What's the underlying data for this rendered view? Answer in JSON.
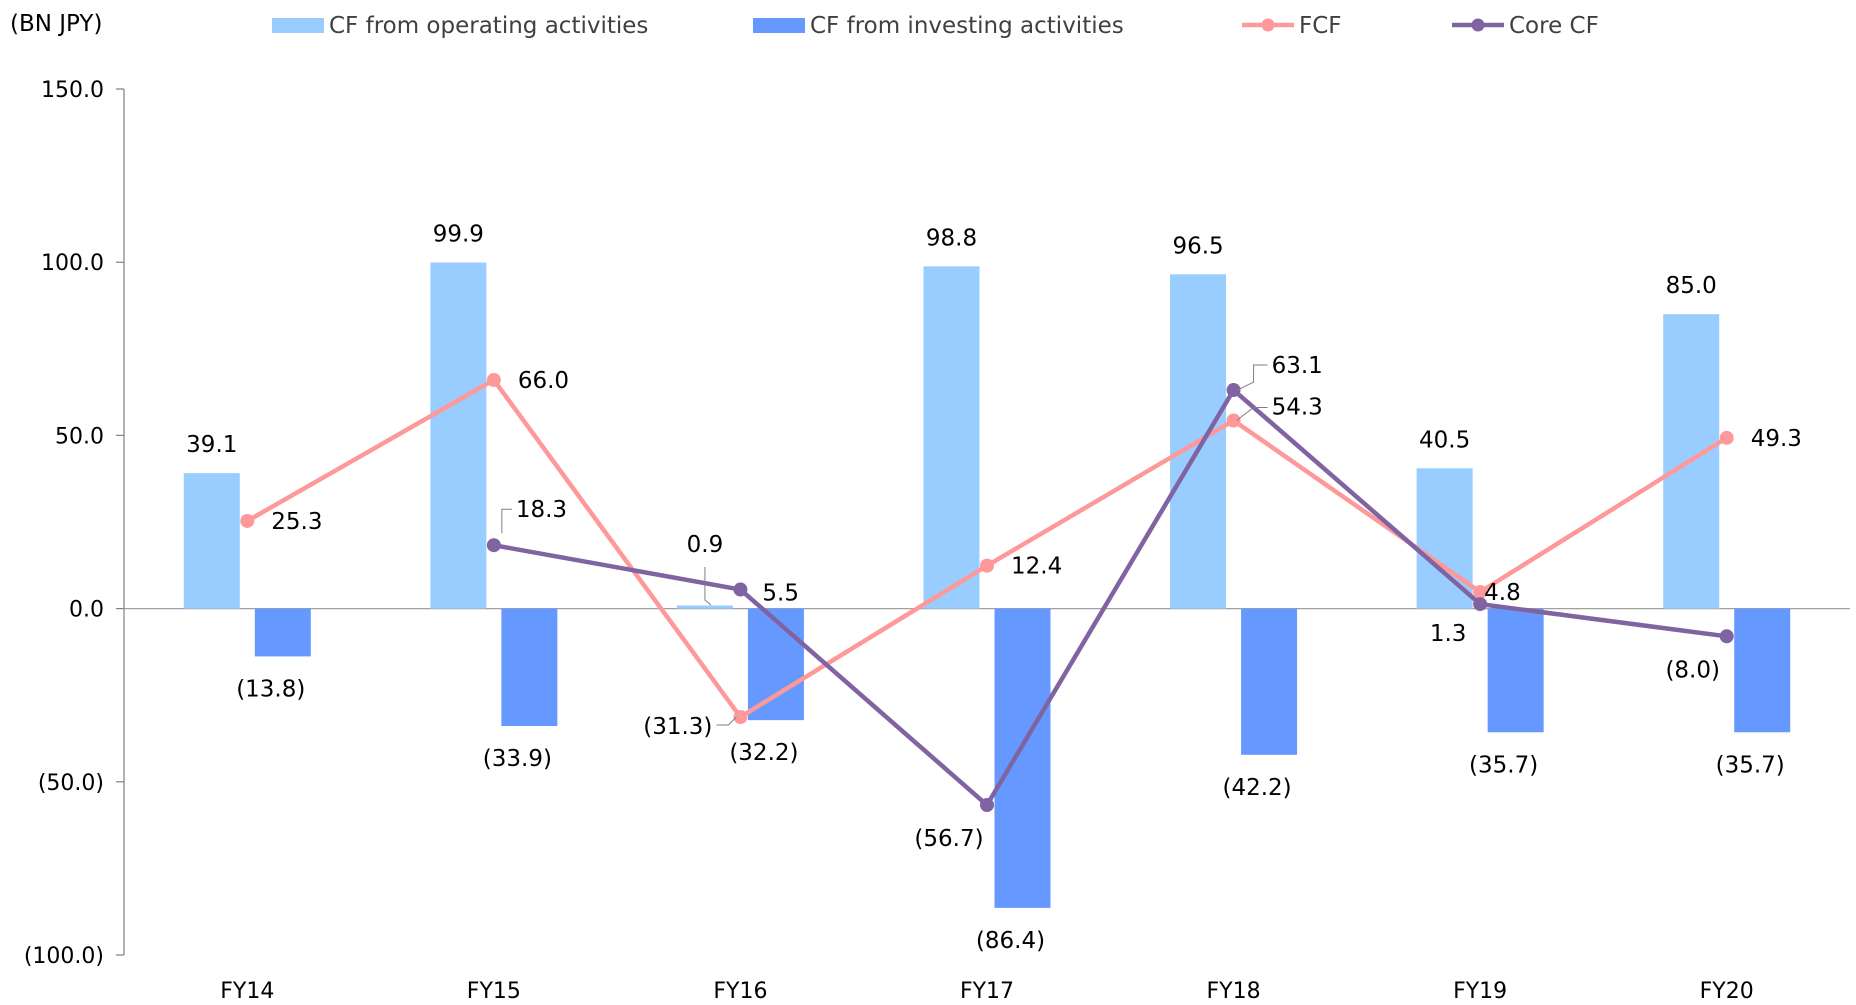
{
  "chart_data": {
    "type": "bar",
    "unit_label": "(BN JPY)",
    "categories": [
      "FY14",
      "FY15",
      "FY16",
      "FY17",
      "FY18",
      "FY19",
      "FY20"
    ],
    "ylim": [
      -100,
      150
    ],
    "yticks": [
      150,
      100,
      50,
      0,
      -50,
      -100
    ],
    "ytick_labels": [
      "150.0",
      "100.0",
      "50.0",
      "0.0",
      "(50.0)",
      "(100.0)"
    ],
    "legend_position": "top",
    "grid": false,
    "series": [
      {
        "name": "CF from operating activities",
        "kind": "bar",
        "color": "#99CCFF",
        "values": [
          39.1,
          99.9,
          0.9,
          98.8,
          96.5,
          40.5,
          85.0
        ],
        "labels": [
          "39.1",
          "99.9",
          "0.9",
          "98.8",
          "96.5",
          "40.5",
          "85.0"
        ]
      },
      {
        "name": "CF from investing activities",
        "kind": "bar",
        "color": "#6699FF",
        "values": [
          -13.8,
          -33.9,
          -32.2,
          -86.4,
          -42.2,
          -35.7,
          -35.7
        ],
        "labels": [
          "(13.8)",
          "(33.9)",
          "(32.2)",
          "(86.4)",
          "(42.2)",
          "(35.7)",
          "(35.7)"
        ]
      },
      {
        "name": "FCF",
        "kind": "line",
        "color": "#FF9999",
        "values": [
          25.3,
          66.0,
          -31.3,
          12.4,
          54.3,
          4.8,
          49.3
        ],
        "labels": [
          "25.3",
          "66.0",
          "(31.3)",
          "12.4",
          "54.3",
          "4.8",
          "49.3"
        ]
      },
      {
        "name": "Core CF",
        "kind": "line",
        "color": "#8064A2",
        "values": [
          null,
          18.3,
          5.5,
          -56.7,
          63.1,
          1.3,
          -8.0
        ],
        "labels": [
          "",
          "18.3",
          "5.5",
          "(56.7)",
          "63.1",
          "1.3",
          "(8.0)"
        ]
      }
    ]
  }
}
